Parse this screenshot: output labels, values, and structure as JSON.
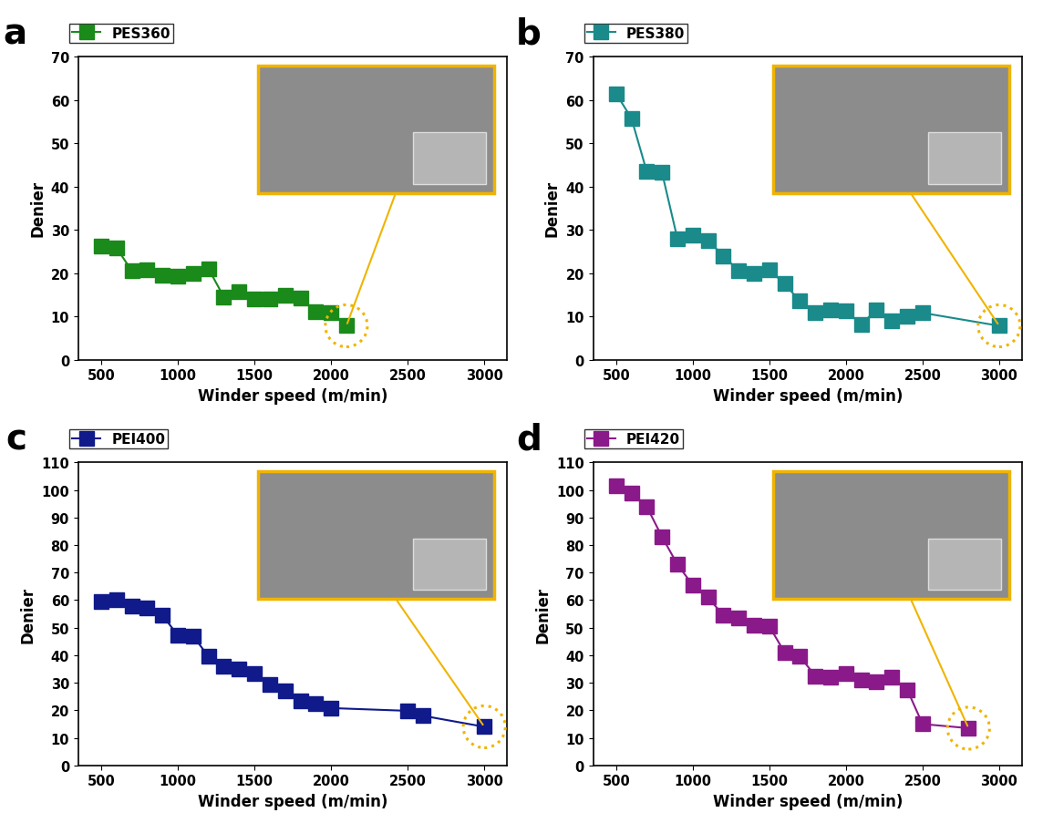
{
  "chart_data": [
    {
      "type": "line",
      "title": "a",
      "x_label": "Winder speed (m/min)",
      "y_label": "Denier",
      "x": [
        500,
        600,
        700,
        800,
        900,
        1000,
        1100,
        1200,
        1300,
        1400,
        1500,
        1600,
        1700,
        1800,
        1900,
        2000,
        2100
      ],
      "series": [
        {
          "name": "PES360",
          "color": "#1a8a1a",
          "marker": "square",
          "line_style": "solid",
          "values": [
            26.3,
            25.8,
            20.5,
            20.7,
            19.5,
            19.3,
            20.0,
            21.0,
            14.5,
            15.8,
            14.0,
            14.0,
            14.8,
            14.3,
            11.0,
            10.8,
            7.8
          ]
        }
      ],
      "xlim": [
        350,
        3150
      ],
      "xticks": [
        500,
        1000,
        1500,
        2000,
        2500,
        3000
      ],
      "ylim": [
        0,
        70
      ],
      "yticks": [
        0,
        10,
        20,
        30,
        40,
        50,
        60,
        70
      ],
      "legend": "upper left",
      "grid": false
    },
    {
      "type": "line",
      "title": "b",
      "x_label": "Winder speed (m/min)",
      "y_label": "Denier",
      "x": [
        500,
        600,
        700,
        800,
        900,
        1000,
        1100,
        1200,
        1300,
        1400,
        1500,
        1600,
        1700,
        1800,
        1900,
        2000,
        2100,
        2200,
        2300,
        2400,
        2500,
        3000
      ],
      "series": [
        {
          "name": "PES380",
          "color": "#1a8a8a",
          "marker": "square",
          "line_style": "solid",
          "values": [
            61.5,
            55.8,
            43.5,
            43.2,
            28.0,
            28.8,
            27.5,
            24.0,
            20.5,
            20.0,
            20.7,
            17.5,
            13.5,
            10.8,
            11.5,
            11.2,
            8.2,
            11.5,
            9.0,
            10.0,
            10.8,
            7.8
          ]
        }
      ],
      "xlim": [
        350,
        3150
      ],
      "xticks": [
        500,
        1000,
        1500,
        2000,
        2500,
        3000
      ],
      "ylim": [
        0,
        70
      ],
      "yticks": [
        0,
        10,
        20,
        30,
        40,
        50,
        60,
        70
      ],
      "legend": "upper left",
      "grid": false
    },
    {
      "type": "line",
      "title": "c",
      "x_label": "Winder speed (m/min)",
      "y_label": "Denier",
      "x": [
        500,
        600,
        700,
        800,
        900,
        1000,
        1100,
        1200,
        1300,
        1400,
        1500,
        1600,
        1700,
        1800,
        1900,
        2000,
        2500,
        2600,
        3000
      ],
      "series": [
        {
          "name": "PEI400",
          "color": "#101a8a",
          "marker": "square",
          "line_style": "solid",
          "values": [
            59.5,
            60.0,
            57.8,
            57.2,
            54.5,
            47.2,
            47.0,
            39.5,
            36.0,
            35.0,
            33.5,
            29.5,
            27.0,
            23.5,
            22.5,
            20.8,
            19.8,
            18.0,
            14.0
          ]
        }
      ],
      "xlim": [
        350,
        3150
      ],
      "xticks": [
        500,
        1000,
        1500,
        2000,
        2500,
        3000
      ],
      "ylim": [
        0,
        110
      ],
      "yticks": [
        0,
        10,
        20,
        30,
        40,
        50,
        60,
        70,
        80,
        90,
        100,
        110
      ],
      "legend": "upper left",
      "grid": false
    },
    {
      "type": "line",
      "title": "d",
      "x_label": "Winder speed (m/min)",
      "y_label": "Denier",
      "x": [
        500,
        600,
        700,
        800,
        900,
        1000,
        1100,
        1200,
        1300,
        1400,
        1500,
        1600,
        1700,
        1800,
        1900,
        2000,
        2100,
        2200,
        2300,
        2400,
        2500,
        2800
      ],
      "series": [
        {
          "name": "PEI420",
          "color": "#8a1a8a",
          "marker": "square",
          "line_style": "solid",
          "values": [
            101.5,
            99.0,
            94.0,
            83.0,
            73.0,
            65.5,
            61.0,
            54.5,
            53.5,
            51.0,
            50.5,
            41.0,
            39.5,
            32.5,
            32.0,
            33.5,
            31.0,
            30.5,
            32.0,
            27.5,
            15.0,
            13.5
          ]
        }
      ],
      "xlim": [
        350,
        3150
      ],
      "xticks": [
        500,
        1000,
        1500,
        2000,
        2500,
        3000
      ],
      "ylim": [
        0,
        110
      ],
      "yticks": [
        0,
        10,
        20,
        30,
        40,
        50,
        60,
        70,
        80,
        90,
        100,
        110
      ],
      "legend": "upper left",
      "grid": false
    }
  ]
}
